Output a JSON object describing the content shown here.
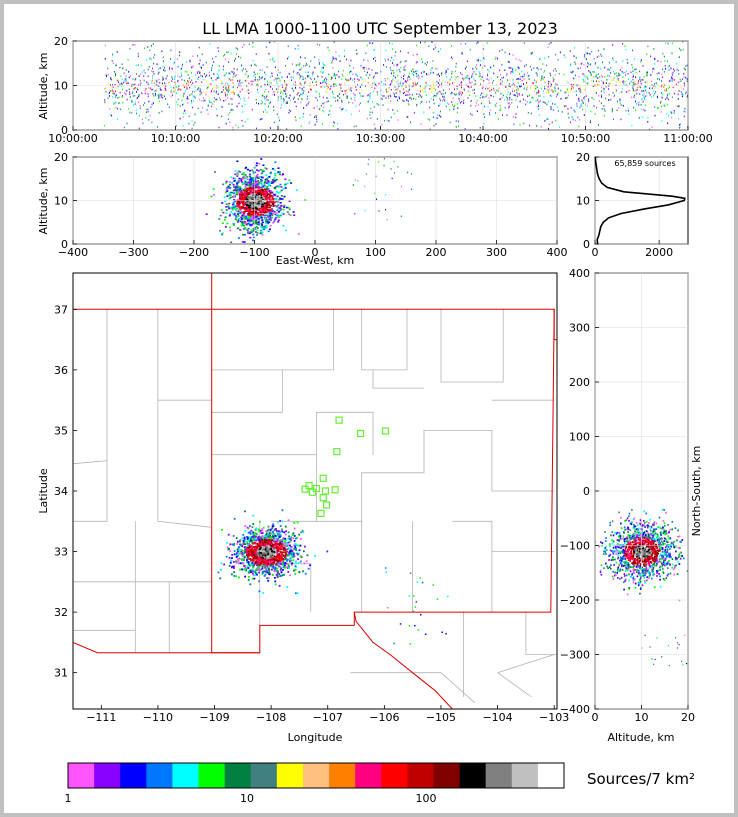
{
  "title": "LL LMA 1000-1100 UTC September 13, 2023",
  "source_count": "65,859 sources",
  "colorbar_label": "Sources/7 km²",
  "colorbar_colors": [
    "#ff55ff",
    "#8800ff",
    "#0000ff",
    "#0077ff",
    "#00ffff",
    "#00ff00",
    "#008040",
    "#408080",
    "#ffff00",
    "#ffc080",
    "#ff8000",
    "#ff0080",
    "#ff0000",
    "#c00000",
    "#800000",
    "#000000",
    "#808080",
    "#c0c0c0",
    "#ffffff"
  ],
  "colorbar_ticks": [
    "1",
    "10",
    "100"
  ],
  "chart_data": [
    {
      "type": "scatter",
      "name": "altitude-time",
      "ylabel": "Altitude, km",
      "x_ticks": [
        "10:00:00",
        "10:10:00",
        "10:20:00",
        "10:30:00",
        "10:40:00",
        "10:50:00",
        "11:00:00"
      ],
      "y_ticks": [
        "0",
        "10",
        "20"
      ],
      "xlim": [
        "10:00:00",
        "11:00:00"
      ],
      "ylim": [
        0,
        20
      ],
      "note_density_peak_altitude_km": 10
    },
    {
      "type": "heatmap",
      "name": "altitude-eastwest",
      "xlabel": "East-West, km",
      "ylabel": "Altitude, km",
      "x_ticks": [
        "−400",
        "−300",
        "−200",
        "−100",
        "0",
        "100",
        "200",
        "300",
        "400"
      ],
      "y_ticks": [
        "0",
        "10",
        "20"
      ],
      "xlim": [
        -400,
        400
      ],
      "ylim": [
        0,
        20
      ],
      "main_cluster_center_x_km": -100,
      "main_cluster_center_alt_km": 10
    },
    {
      "type": "line",
      "name": "altitude-histogram",
      "x_ticks": [
        "0",
        "2000"
      ],
      "y_ticks": [
        "0",
        "10",
        "20"
      ],
      "xlim": [
        0,
        2900
      ],
      "ylim": [
        0,
        20
      ],
      "altitude_km": [
        0,
        1,
        2,
        3,
        4,
        5,
        6,
        7,
        8,
        9,
        10,
        10.5,
        11,
        12,
        13,
        14,
        15,
        16,
        17,
        18,
        19,
        20
      ],
      "count": [
        80,
        70,
        120,
        150,
        180,
        260,
        420,
        800,
        1500,
        2300,
        2780,
        2800,
        2400,
        900,
        380,
        210,
        130,
        80,
        60,
        40,
        20,
        10
      ]
    },
    {
      "type": "heatmap",
      "name": "plan-view-map",
      "xlabel": "Longitude",
      "ylabel": "Latitude",
      "x_ticks": [
        "−111",
        "−110",
        "−109",
        "−108",
        "−107",
        "−106",
        "−105",
        "−104",
        "−103"
      ],
      "y_ticks": [
        "31",
        "32",
        "33",
        "34",
        "35",
        "36",
        "37"
      ],
      "xlim": [
        -111.5,
        -102.95
      ],
      "ylim": [
        30.4,
        37.6
      ],
      "stations": [
        {
          "lon": -106.8,
          "lat": 35.17
        },
        {
          "lon": -106.42,
          "lat": 34.95
        },
        {
          "lon": -105.98,
          "lat": 34.99
        },
        {
          "lon": -106.84,
          "lat": 34.65
        },
        {
          "lon": -107.08,
          "lat": 34.21
        },
        {
          "lon": -107.33,
          "lat": 34.09
        },
        {
          "lon": -107.2,
          "lat": 34.04
        },
        {
          "lon": -107.4,
          "lat": 34.03
        },
        {
          "lon": -107.27,
          "lat": 33.98
        },
        {
          "lon": -107.04,
          "lat": 34.0
        },
        {
          "lon": -106.87,
          "lat": 34.02
        },
        {
          "lon": -107.08,
          "lat": 33.89
        },
        {
          "lon": -107.02,
          "lat": 33.77
        },
        {
          "lon": -107.12,
          "lat": 33.63
        }
      ],
      "main_cluster_center_lon": -108.1,
      "main_cluster_center_lat": 33.0
    },
    {
      "type": "heatmap",
      "name": "northsouth-altitude",
      "xlabel": "Altitude, km",
      "ylabel": "North-South, km",
      "x_ticks": [
        "0",
        "10",
        "20"
      ],
      "y_ticks": [
        "−400",
        "−300",
        "−200",
        "−100",
        "0",
        "100",
        "200",
        "300",
        "400"
      ],
      "xlim": [
        0,
        20
      ],
      "ylim": [
        -400,
        400
      ],
      "main_cluster_center_alt_km": 10,
      "main_cluster_center_y_km": -110
    }
  ]
}
